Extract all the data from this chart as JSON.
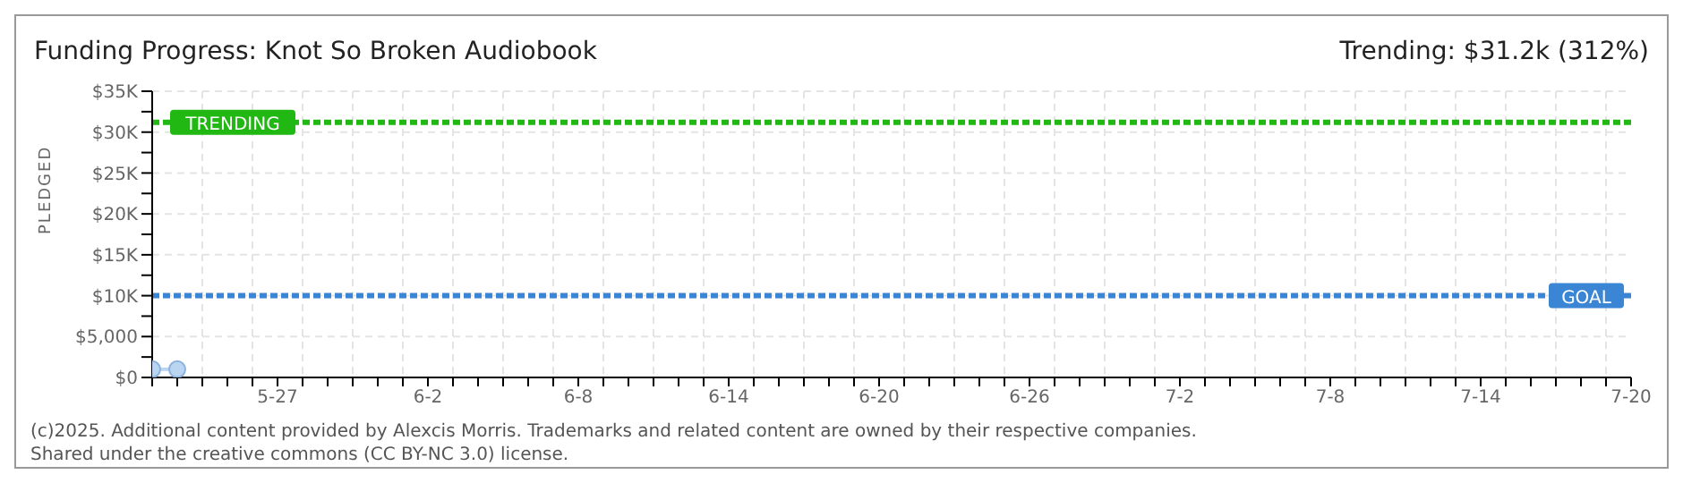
{
  "chart_data": {
    "type": "line",
    "title": "Funding Progress: Knot So Broken Audiobook",
    "subtitle": "Trending: $31.2k (312%)",
    "ylabel": "PLEDGED",
    "x": [
      "2025-05-22",
      "2025-05-23"
    ],
    "series": [
      {
        "color": "#b9d5f2",
        "values": [
          1000,
          1000
        ]
      }
    ],
    "marker": "circle",
    "grid": true,
    "xlim": [
      "2025-05-22",
      "2025-07-20"
    ],
    "xticks": [
      {
        "value": "2025-05-22",
        "label": null
      },
      {
        "value": "2025-05-23",
        "label": null
      },
      {
        "value": "2025-05-24",
        "label": null
      },
      {
        "value": "2025-05-25",
        "label": null
      },
      {
        "value": "2025-05-26",
        "label": null
      },
      {
        "value": "2025-05-27",
        "label": "5-27"
      },
      {
        "value": "2025-05-28",
        "label": null
      },
      {
        "value": "2025-05-29",
        "label": null
      },
      {
        "value": "2025-05-30",
        "label": null
      },
      {
        "value": "2025-05-31",
        "label": null
      },
      {
        "value": "2025-06-01",
        "label": null
      },
      {
        "value": "2025-06-02",
        "label": "6-2"
      },
      {
        "value": "2025-06-03",
        "label": null
      },
      {
        "value": "2025-06-04",
        "label": null
      },
      {
        "value": "2025-06-05",
        "label": null
      },
      {
        "value": "2025-06-06",
        "label": null
      },
      {
        "value": "2025-06-07",
        "label": null
      },
      {
        "value": "2025-06-08",
        "label": "6-8"
      },
      {
        "value": "2025-06-09",
        "label": null
      },
      {
        "value": "2025-06-10",
        "label": null
      },
      {
        "value": "2025-06-11",
        "label": null
      },
      {
        "value": "2025-06-12",
        "label": null
      },
      {
        "value": "2025-06-13",
        "label": null
      },
      {
        "value": "2025-06-14",
        "label": "6-14"
      },
      {
        "value": "2025-06-15",
        "label": null
      },
      {
        "value": "2025-06-16",
        "label": null
      },
      {
        "value": "2025-06-17",
        "label": null
      },
      {
        "value": "2025-06-18",
        "label": null
      },
      {
        "value": "2025-06-19",
        "label": null
      },
      {
        "value": "2025-06-20",
        "label": "6-20"
      },
      {
        "value": "2025-06-21",
        "label": null
      },
      {
        "value": "2025-06-22",
        "label": null
      },
      {
        "value": "2025-06-23",
        "label": null
      },
      {
        "value": "2025-06-24",
        "label": null
      },
      {
        "value": "2025-06-25",
        "label": null
      },
      {
        "value": "2025-06-26",
        "label": "6-26"
      },
      {
        "value": "2025-06-27",
        "label": null
      },
      {
        "value": "2025-06-28",
        "label": null
      },
      {
        "value": "2025-06-29",
        "label": null
      },
      {
        "value": "2025-06-30",
        "label": null
      },
      {
        "value": "2025-07-01",
        "label": null
      },
      {
        "value": "2025-07-02",
        "label": "7-2"
      },
      {
        "value": "2025-07-03",
        "label": null
      },
      {
        "value": "2025-07-04",
        "label": null
      },
      {
        "value": "2025-07-05",
        "label": null
      },
      {
        "value": "2025-07-06",
        "label": null
      },
      {
        "value": "2025-07-07",
        "label": null
      },
      {
        "value": "2025-07-08",
        "label": "7-8"
      },
      {
        "value": "2025-07-09",
        "label": null
      },
      {
        "value": "2025-07-10",
        "label": null
      },
      {
        "value": "2025-07-11",
        "label": null
      },
      {
        "value": "2025-07-12",
        "label": null
      },
      {
        "value": "2025-07-13",
        "label": null
      },
      {
        "value": "2025-07-14",
        "label": "7-14"
      },
      {
        "value": "2025-07-15",
        "label": null
      },
      {
        "value": "2025-07-16",
        "label": null
      },
      {
        "value": "2025-07-17",
        "label": null
      },
      {
        "value": "2025-07-18",
        "label": null
      },
      {
        "value": "2025-07-19",
        "label": null
      },
      {
        "value": "2025-07-20",
        "label": "7-20"
      }
    ],
    "ylim": [
      0,
      35000
    ],
    "yticks": [
      {
        "value": 0,
        "label": "$0"
      },
      {
        "value": 2500,
        "label": null
      },
      {
        "value": 5000,
        "label": "$5,000"
      },
      {
        "value": 7500,
        "label": null
      },
      {
        "value": 10000,
        "label": "$10K"
      },
      {
        "value": 12500,
        "label": null
      },
      {
        "value": 15000,
        "label": "$15K"
      },
      {
        "value": 17500,
        "label": null
      },
      {
        "value": 20000,
        "label": "$20K"
      },
      {
        "value": 22500,
        "label": null
      },
      {
        "value": 25000,
        "label": "$25K"
      },
      {
        "value": 27500,
        "label": null
      },
      {
        "value": 30000,
        "label": "$30K"
      },
      {
        "value": 32500,
        "label": null
      },
      {
        "value": 35000,
        "label": "$35K"
      }
    ],
    "ref_lines": [
      {
        "axis": "y",
        "value": 31200,
        "label": "TRENDING",
        "color": "#22b814",
        "line_style": "dashed"
      },
      {
        "axis": "y",
        "value": 10000,
        "label": "GOAL",
        "color": "#3a86d4",
        "line_style": "dashed"
      }
    ],
    "annotations": [
      "(c)2025. Additional content provided by Alexcis Morris. Trademarks and related content are owned by their respective companies.",
      "Shared under the creative commons (CC BY-NC 3.0) license."
    ]
  }
}
